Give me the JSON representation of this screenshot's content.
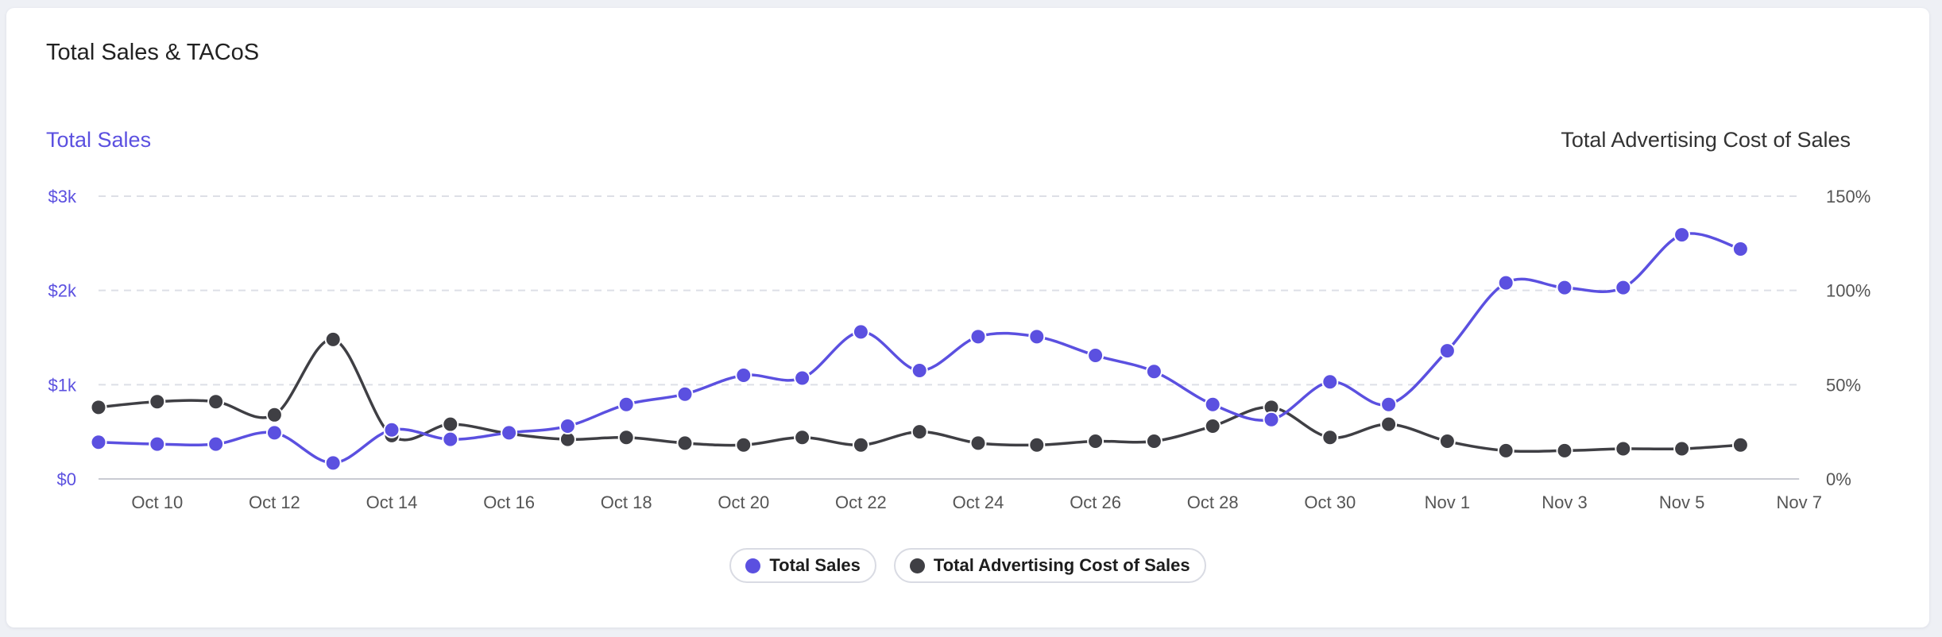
{
  "card": {
    "title": "Total Sales & TACoS"
  },
  "colors": {
    "sales": "#5b50e0",
    "tacos": "#3f3f44",
    "grid": "#dddfe6",
    "axis_text": "#555555",
    "left_axis_text": "#5b50e0"
  },
  "legend": [
    {
      "label": "Total Sales",
      "color": "#5b50e0"
    },
    {
      "label": "Total Advertising Cost of Sales",
      "color": "#3f3f44"
    }
  ],
  "chart_data": {
    "type": "line",
    "title": "Total Sales & TACoS",
    "y_left_title": "Total Sales",
    "y_right_title": "Total Advertising Cost of Sales",
    "y_left_ticks": [
      "$0",
      "$1k",
      "$2k",
      "$3k"
    ],
    "y_left_range": [
      0,
      3000
    ],
    "y_right_ticks": [
      "0%",
      "50%",
      "100%",
      "150%"
    ],
    "y_right_range": [
      0,
      150
    ],
    "x_ticks": [
      "Oct 10",
      "Oct 12",
      "Oct 14",
      "Oct 16",
      "Oct 18",
      "Oct 20",
      "Oct 22",
      "Oct 24",
      "Oct 26",
      "Oct 28",
      "Oct 30",
      "Nov 1",
      "Nov 3",
      "Nov 5",
      "Nov 7"
    ],
    "x_range": [
      "Oct 9",
      "Nov 7"
    ],
    "x": [
      "Oct 9",
      "Oct 10",
      "Oct 11",
      "Oct 12",
      "Oct 13",
      "Oct 14",
      "Oct 15",
      "Oct 16",
      "Oct 17",
      "Oct 18",
      "Oct 19",
      "Oct 20",
      "Oct 21",
      "Oct 22",
      "Oct 23",
      "Oct 24",
      "Oct 25",
      "Oct 26",
      "Oct 27",
      "Oct 28",
      "Oct 29",
      "Oct 30",
      "Oct 31",
      "Nov 1",
      "Nov 2",
      "Nov 3",
      "Nov 4",
      "Nov 5",
      "Nov 6"
    ],
    "grid": true,
    "legend_position": "bottom",
    "series": [
      {
        "name": "Total Sales",
        "axis": "left",
        "color": "#5b50e0",
        "values": [
          390,
          370,
          370,
          490,
          170,
          520,
          420,
          490,
          560,
          790,
          900,
          1100,
          1070,
          1560,
          1150,
          1510,
          1510,
          1310,
          1140,
          790,
          630,
          1030,
          790,
          1360,
          2080,
          2030,
          2030,
          2590,
          2440
        ]
      },
      {
        "name": "Total Advertising Cost of Sales",
        "axis": "right",
        "color": "#3f3f44",
        "values": [
          38,
          41,
          41,
          34,
          74,
          23,
          29,
          24,
          21,
          22,
          19,
          18,
          22,
          18,
          25,
          19,
          18,
          20,
          20,
          28,
          38,
          22,
          29,
          20,
          15,
          15,
          16,
          16,
          18
        ]
      }
    ]
  }
}
